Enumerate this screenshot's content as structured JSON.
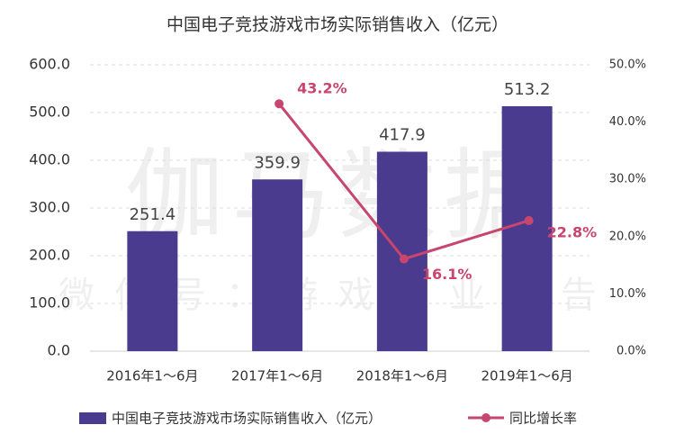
{
  "chart_data": {
    "type": "bar_line",
    "title": "中国电子竞技游戏市场实际销售收入（亿元）",
    "watermark": {
      "main": "伽马数据",
      "sub": "微信号：游戏产业报告"
    },
    "categories": [
      "2016年1～6月",
      "2017年1～6月",
      "2018年1～6月",
      "2019年1～6月"
    ],
    "series": [
      {
        "name": "中国电子竞技游戏市场实际销售收入（亿元）",
        "color": "#4a3b8f",
        "type": "bar",
        "axis": "y",
        "values": [
          251.4,
          359.9,
          417.9,
          513.2
        ]
      },
      {
        "name": "同比增长率",
        "color": "#c8456e",
        "type": "line",
        "axis": "y2",
        "values": [
          null,
          43.2,
          16.1,
          22.8
        ],
        "value_labels": [
          null,
          "43.2%",
          "16.1%",
          "22.8%"
        ]
      }
    ],
    "ylim": [
      0,
      600
    ],
    "yticks": [
      {
        "value": 0,
        "label": "0.0"
      },
      {
        "value": 100,
        "label": "100.0"
      },
      {
        "value": 200,
        "label": "200.0"
      },
      {
        "value": 300,
        "label": "300.0"
      },
      {
        "value": 400,
        "label": "400.0"
      },
      {
        "value": 500,
        "label": "500.0"
      },
      {
        "value": 600,
        "label": "600.0"
      }
    ],
    "y2lim": [
      0,
      50
    ],
    "y2ticks": [
      {
        "value": 0,
        "label": "0.0%"
      },
      {
        "value": 10,
        "label": "10.0%"
      },
      {
        "value": 20,
        "label": "20.0%"
      },
      {
        "value": 30,
        "label": "30.0%"
      },
      {
        "value": 40,
        "label": "40.0%"
      },
      {
        "value": 50,
        "label": "50.0%"
      }
    ],
    "grid": true,
    "legend": "bottom"
  }
}
